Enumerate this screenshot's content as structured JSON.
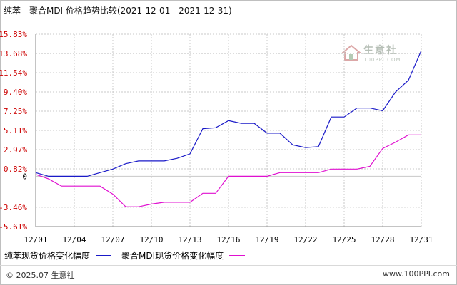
{
  "title": "纯苯 - 聚合MDI 价格趋势比较(2021-12-01 - 2021-12-31)",
  "watermark": {
    "name": "生意社",
    "url": "100PPI.COM"
  },
  "footer": {
    "copyright": "© 2025.07 生意社",
    "site": "www.100PPI.com"
  },
  "colors": {
    "series1": "#1a1ac8",
    "series2": "#e010d0",
    "ytick": "#cc0000",
    "grid": "#c8c8c8"
  },
  "chart_data": {
    "type": "line",
    "title": "纯苯 - 聚合MDI 价格趋势比较(2021-12-01 - 2021-12-31)",
    "xlabel": "",
    "ylabel": "",
    "x": [
      "12/01",
      "12/02",
      "12/03",
      "12/04",
      "12/05",
      "12/06",
      "12/07",
      "12/08",
      "12/09",
      "12/10",
      "12/11",
      "12/12",
      "12/13",
      "12/14",
      "12/15",
      "12/16",
      "12/17",
      "12/18",
      "12/19",
      "12/20",
      "12/21",
      "12/22",
      "12/23",
      "12/24",
      "12/25",
      "12/26",
      "12/27",
      "12/28",
      "12/29",
      "12/30",
      "12/31"
    ],
    "x_tick_labels": [
      "12/01",
      "12/04",
      "12/07",
      "12/10",
      "12/13",
      "12/16",
      "12/19",
      "12/22",
      "12/25",
      "12/28",
      "12/31"
    ],
    "y_tick_labels": [
      "15.83%",
      "13.68%",
      "11.54%",
      "9.40%",
      "7.25%",
      "5.11%",
      "2.97%",
      "0.82%",
      "0",
      "-3.46%",
      "-5.61%"
    ],
    "y_tick_values": [
      15.83,
      13.68,
      11.54,
      9.4,
      7.25,
      5.11,
      2.97,
      0.82,
      0,
      -3.46,
      -5.61
    ],
    "ylim": [
      -5.61,
      15.83
    ],
    "grid": true,
    "legend_position": "bottom",
    "series": [
      {
        "name": "纯苯现货价格变化幅度",
        "values": [
          0.4,
          0,
          0,
          0,
          0,
          0.4,
          0.8,
          1.4,
          1.7,
          1.7,
          1.7,
          2.0,
          2.5,
          5.3,
          5.4,
          6.2,
          5.9,
          5.9,
          4.8,
          4.8,
          3.5,
          3.2,
          3.3,
          6.6,
          6.6,
          7.6,
          7.6,
          7.3,
          9.4,
          10.7,
          14.0
        ]
      },
      {
        "name": "聚合MDI现货价格变化幅度",
        "values": [
          0.2,
          -0.3,
          -1.1,
          -1.1,
          -1.1,
          -1.1,
          -2.0,
          -3.4,
          -3.4,
          -3.1,
          -2.9,
          -2.9,
          -2.9,
          -1.9,
          -1.9,
          0,
          0,
          0,
          0,
          0.4,
          0.4,
          0.4,
          0.4,
          0.8,
          0.8,
          0.8,
          1.1,
          3.1,
          3.8,
          4.6,
          4.6
        ]
      }
    ]
  }
}
